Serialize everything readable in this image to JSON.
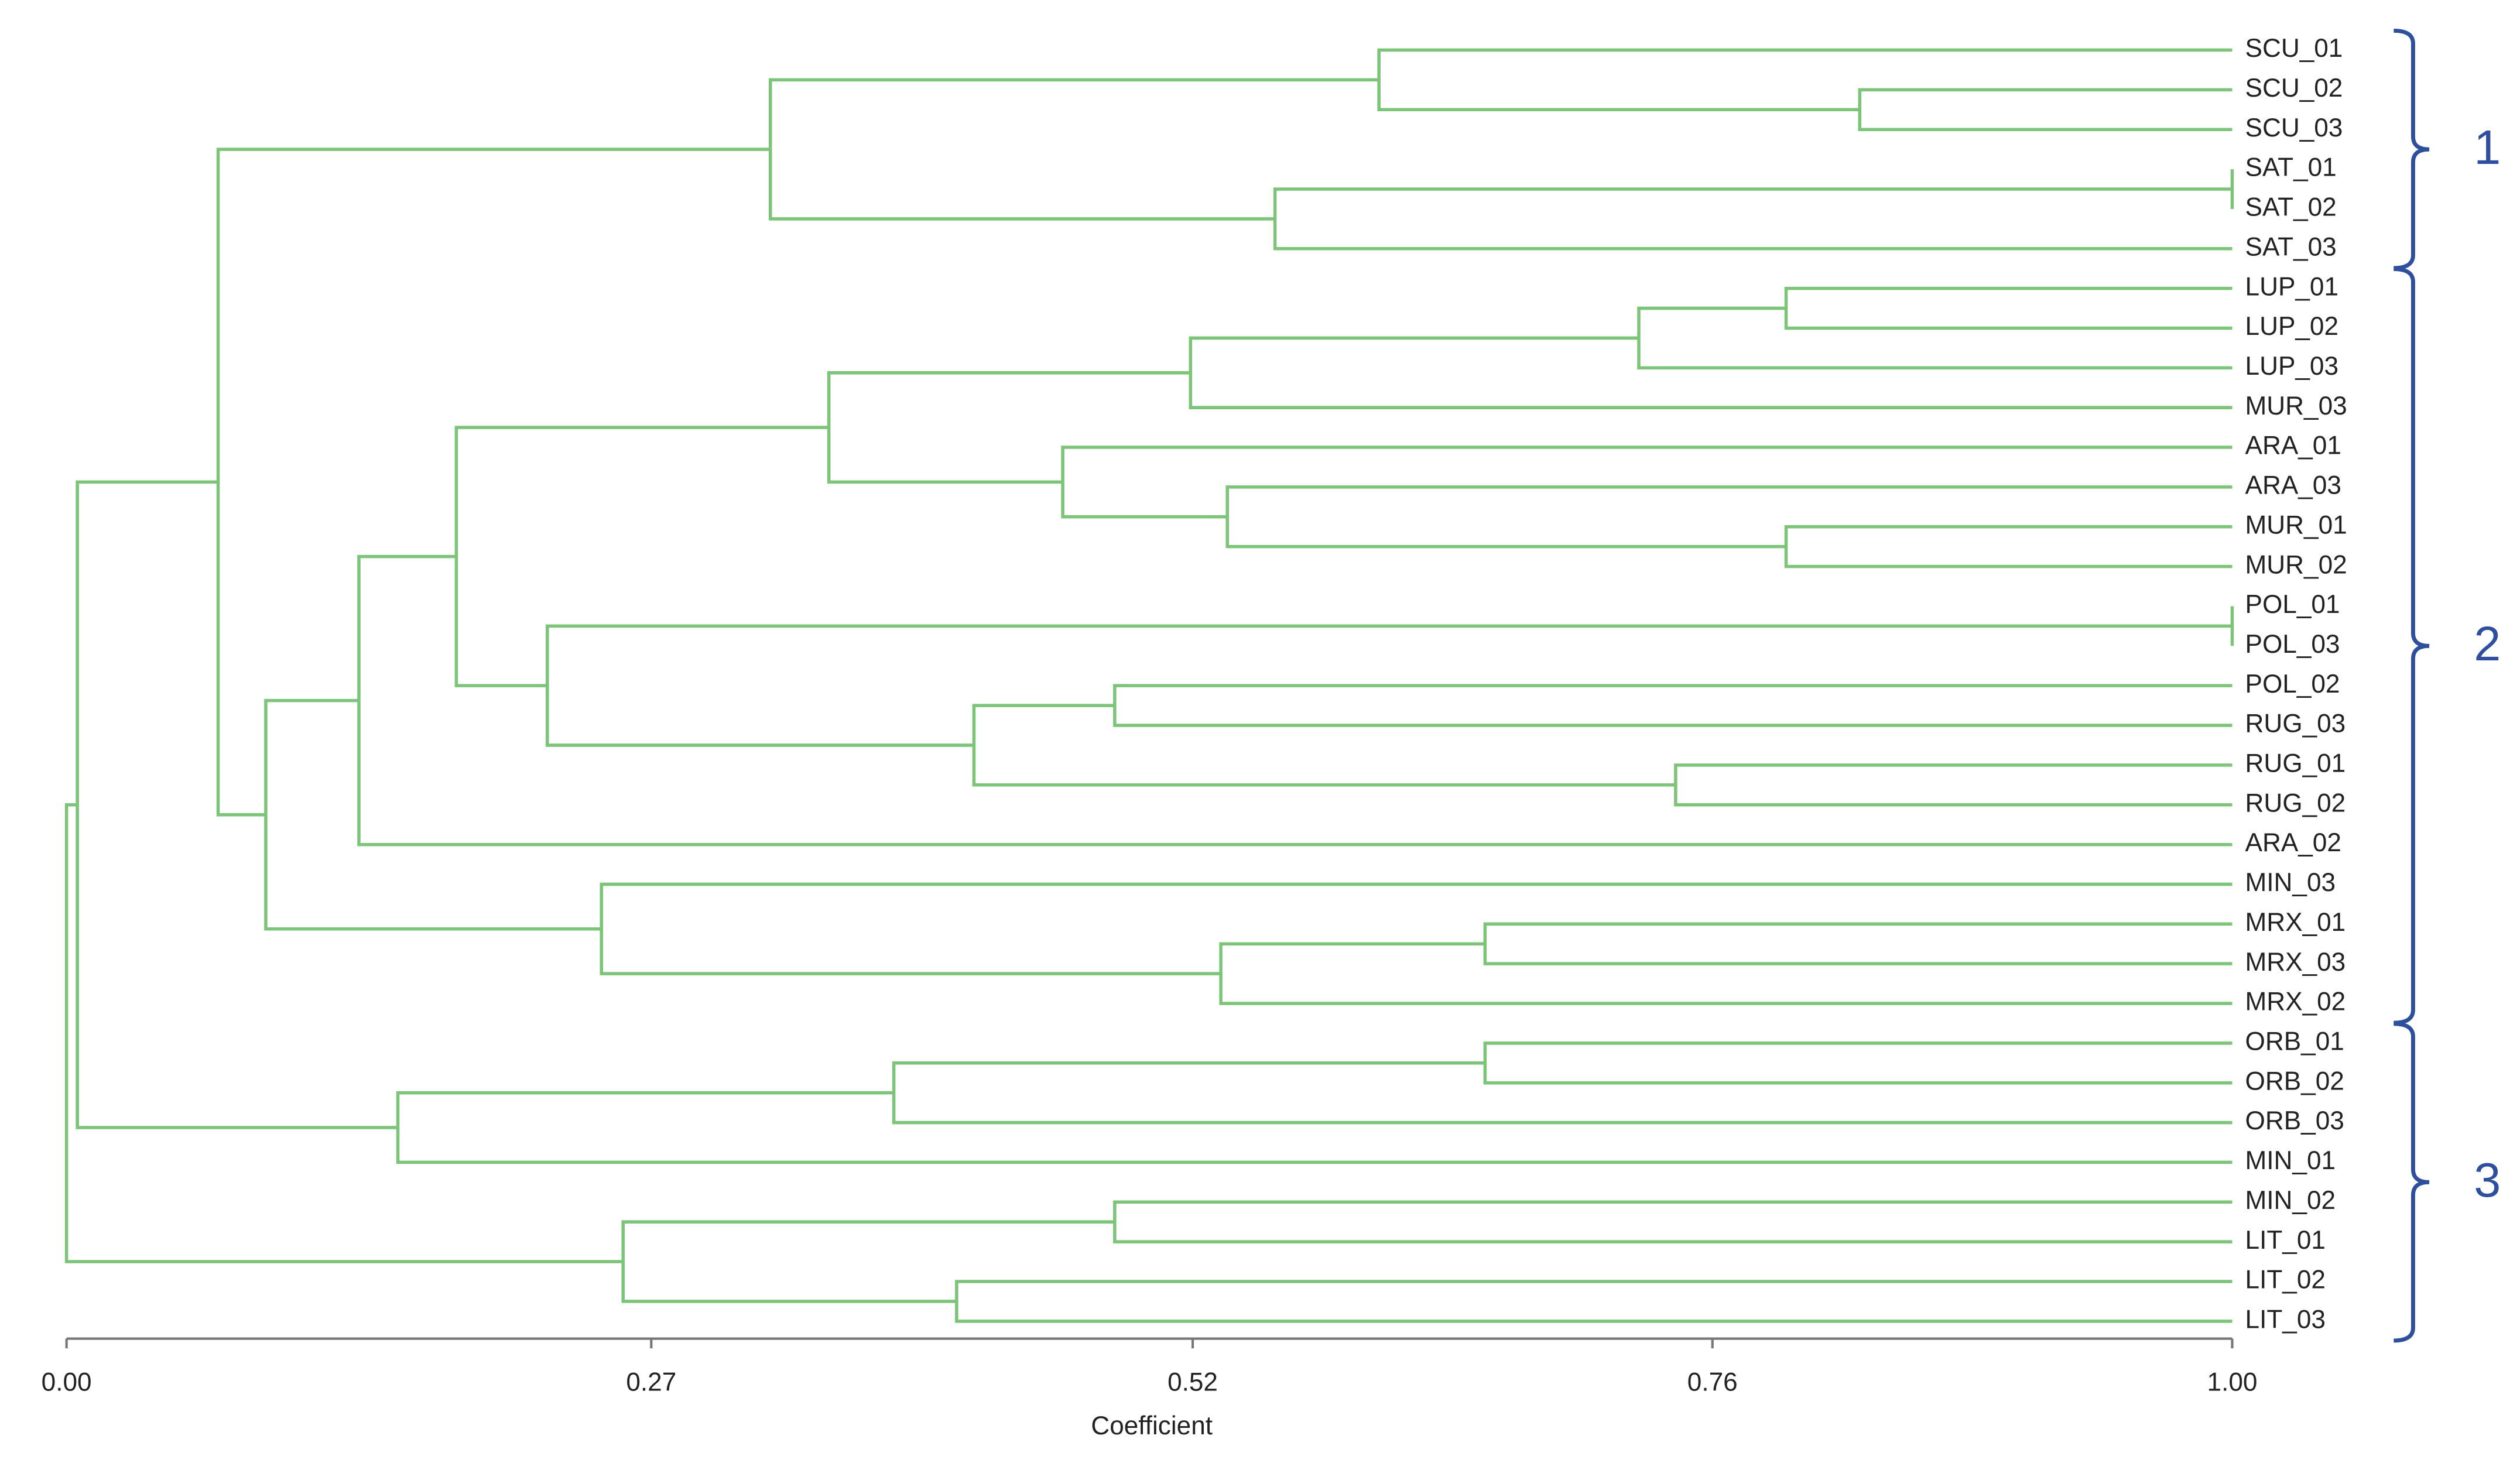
{
  "chart_data": {
    "type": "dendrogram",
    "x_label": "Coefficient",
    "color": "#7cc478",
    "xlim": [
      0,
      1
    ],
    "xticks": [
      {
        "value": 0,
        "label": "0.00"
      },
      {
        "value": 0.27,
        "label": "0.27"
      },
      {
        "value": 0.52,
        "label": "0.52"
      },
      {
        "value": 0.76,
        "label": "0.76"
      },
      {
        "value": 1,
        "label": "1.00"
      }
    ],
    "tree": {
      "value": 0.0,
      "children": [
        {
          "value": 0.005,
          "children": [
            {
              "value": 0.07,
              "children": [
                {
                  "value": 0.325,
                  "children": [
                    {
                      "value": 0.606,
                      "children": [
                        "SCU_01",
                        {
                          "value": 0.828,
                          "children": [
                            "SCU_02",
                            "SCU_03"
                          ]
                        }
                      ]
                    },
                    {
                      "value": 0.558,
                      "children": [
                        {
                          "value": 1.0,
                          "children": [
                            "SAT_01",
                            "SAT_02"
                          ]
                        },
                        "SAT_03"
                      ]
                    }
                  ]
                },
                {
                  "value": 0.092,
                  "children": [
                    {
                      "value": 0.135,
                      "children": [
                        {
                          "value": 0.18,
                          "children": [
                            {
                              "value": 0.352,
                              "children": [
                                {
                                  "value": 0.519,
                                  "children": [
                                    {
                                      "value": 0.726,
                                      "children": [
                                        {
                                          "value": 0.794,
                                          "children": [
                                            "LUP_01",
                                            "LUP_02"
                                          ]
                                        },
                                        "LUP_03"
                                      ]
                                    },
                                    "MUR_03"
                                  ]
                                },
                                {
                                  "value": 0.46,
                                  "children": [
                                    "ARA_01",
                                    {
                                      "value": 0.536,
                                      "children": [
                                        "ARA_03",
                                        {
                                          "value": 0.794,
                                          "children": [
                                            "MUR_01",
                                            "MUR_02"
                                          ]
                                        }
                                      ]
                                    }
                                  ]
                                }
                              ]
                            },
                            {
                              "value": 0.222,
                              "children": [
                                {
                                  "value": 1.0,
                                  "children": [
                                    "POL_01",
                                    "POL_03"
                                  ]
                                },
                                {
                                  "value": 0.419,
                                  "children": [
                                    {
                                      "value": 0.484,
                                      "children": [
                                        "POL_02",
                                        "RUG_03"
                                      ]
                                    },
                                    {
                                      "value": 0.743,
                                      "children": [
                                        "RUG_01",
                                        "RUG_02"
                                      ]
                                    }
                                  ]
                                }
                              ]
                            }
                          ]
                        },
                        "ARA_02"
                      ]
                    },
                    {
                      "value": 0.247,
                      "children": [
                        "MIN_03",
                        {
                          "value": 0.533,
                          "children": [
                            {
                              "value": 0.655,
                              "children": [
                                "MRX_01",
                                "MRX_03"
                              ]
                            },
                            "MRX_02"
                          ]
                        }
                      ]
                    }
                  ]
                }
              ]
            },
            {
              "value": 0.153,
              "children": [
                {
                  "value": 0.382,
                  "children": [
                    {
                      "value": 0.655,
                      "children": [
                        "ORB_01",
                        "ORB_02"
                      ]
                    },
                    "ORB_03"
                  ]
                },
                "MIN_01"
              ]
            }
          ]
        },
        {
          "value": 0.257,
          "children": [
            {
              "value": 0.484,
              "children": [
                "MIN_02",
                "LIT_01"
              ]
            },
            {
              "value": 0.411,
              "children": [
                "LIT_02",
                "LIT_03"
              ]
            }
          ]
        }
      ]
    },
    "groups_color": "#2e4f9e",
    "groups": [
      {
        "label": "1",
        "from": "SCU_01",
        "to": "SAT_03"
      },
      {
        "label": "2",
        "from": "LUP_01",
        "to": "MRX_02"
      },
      {
        "label": "3",
        "from": "ORB_01",
        "to": "LIT_03"
      }
    ]
  }
}
